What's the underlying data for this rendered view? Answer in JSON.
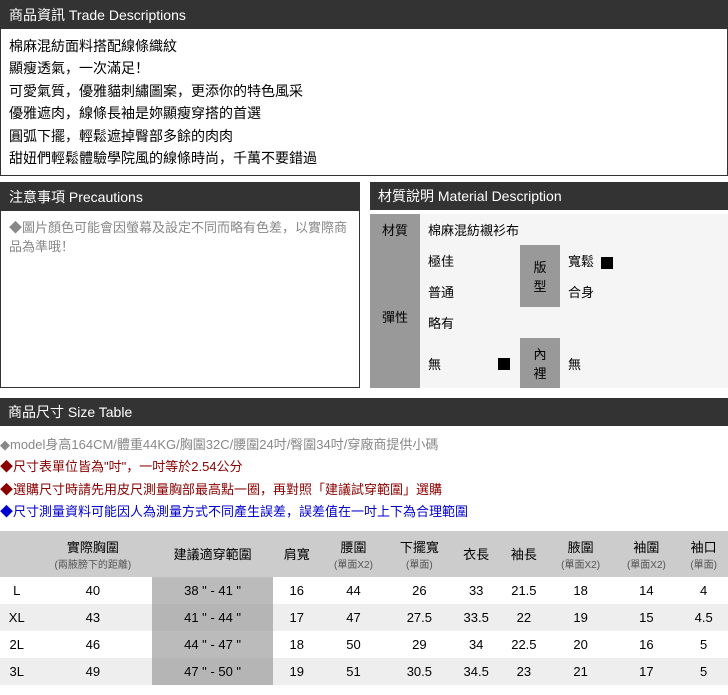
{
  "trade": {
    "title": "商品資訊 Trade Descriptions",
    "lines": [
      "棉麻混紡面料搭配線條織紋",
      "顯瘦透氣，一次滿足！",
      "可愛氣質，優雅貓刺繡圖案，更添你的特色風采",
      "優雅遮肉，線條長袖是妳顯瘦穿搭的首選",
      "圓弧下擺，輕鬆遮掉臀部多餘的肉肉",
      "甜妞們輕鬆體驗學院風的線條時尚，千萬不要錯過"
    ]
  },
  "precautions": {
    "title": "注意事項 Precautions",
    "text": "◆圖片顏色可能會因螢幕及設定不同而略有色差，以實際商品為準哦！"
  },
  "material": {
    "title": "材質說明 Material Description",
    "labels": {
      "material": "材質",
      "elasticity": "彈性",
      "fit": "版型",
      "lining": "內裡"
    },
    "material_value": "棉麻混紡襯衫布",
    "elasticity_opts": [
      "極佳",
      "普通",
      "略有",
      "無"
    ],
    "elasticity_sel": 3,
    "fit_opts": [
      "寬鬆",
      "合身"
    ],
    "fit_sel": 0,
    "lining_value": "無"
  },
  "size": {
    "title": "商品尺寸 Size Table",
    "notes": [
      {
        "style": "gray",
        "text": "◆model身高164CM/體重44KG/胸圍32C/腰圍24吋/臀圍34吋/穿廠商提供小碼"
      },
      {
        "style": "darkred",
        "text": "◆尺寸表單位皆為\"吋\"，一吋等於2.54公分"
      },
      {
        "style": "darkred",
        "text": "◆選購尺寸時請先用皮尺測量胸部最高點一圈，再對照「建議試穿範圍」選購"
      },
      {
        "style": "blue",
        "text": "◆尺寸測量資料可能因人為測量方式不同產生誤差，誤差值在一吋上下為合理範圍"
      }
    ],
    "columns": [
      {
        "label": "",
        "sub": ""
      },
      {
        "label": "實際胸圍",
        "sub": "(兩腋膀下的距離)"
      },
      {
        "label": "建議適穿範圍",
        "sub": ""
      },
      {
        "label": "肩寬",
        "sub": ""
      },
      {
        "label": "腰圍",
        "sub": "(單面X2)"
      },
      {
        "label": "下擺寬",
        "sub": "(單面)"
      },
      {
        "label": "衣長",
        "sub": ""
      },
      {
        "label": "袖長",
        "sub": ""
      },
      {
        "label": "腋圍",
        "sub": "(單面X2)"
      },
      {
        "label": "袖圍",
        "sub": "(單面X2)"
      },
      {
        "label": "袖口",
        "sub": "(單面)"
      }
    ],
    "rows": [
      [
        "L",
        "40",
        "38 \" - 41 \"",
        "16",
        "44",
        "26",
        "33",
        "21.5",
        "18",
        "14",
        "4"
      ],
      [
        "XL",
        "43",
        "41 \" - 44 \"",
        "17",
        "47",
        "27.5",
        "33.5",
        "22",
        "19",
        "15",
        "4.5"
      ],
      [
        "2L",
        "46",
        "44 \" - 47 \"",
        "18",
        "50",
        "29",
        "34",
        "22.5",
        "20",
        "16",
        "5"
      ],
      [
        "3L",
        "49",
        "47 \" - 50 \"",
        "19",
        "51",
        "30.5",
        "34.5",
        "23",
        "21",
        "17",
        "5"
      ]
    ],
    "suggest_col": 2
  },
  "colors": {
    "header_bg": "#333333",
    "header_text": "#ffffff",
    "gray_cell": "#999999",
    "table_head": "#cccccc",
    "table_alt": "#eeeeee",
    "suggest_bg": "#bbbbbb"
  }
}
